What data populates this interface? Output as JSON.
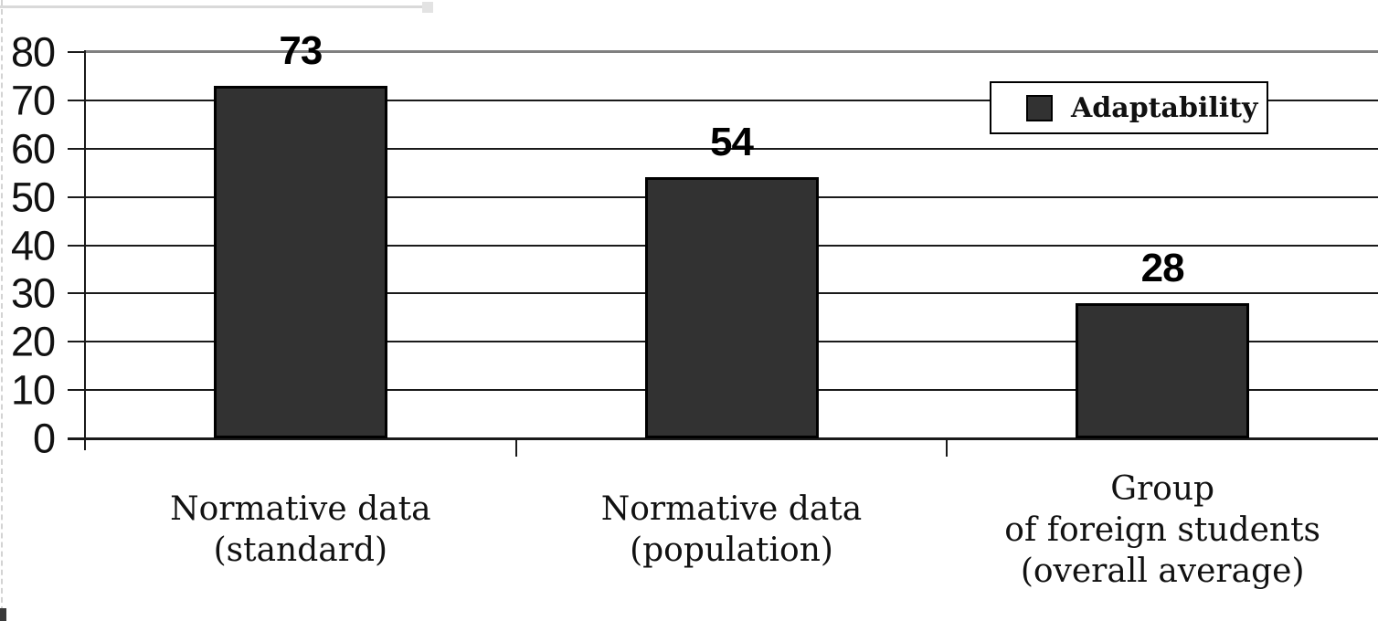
{
  "chart_data": {
    "type": "bar",
    "title": "",
    "xlabel": "",
    "ylabel": "",
    "categories": [
      {
        "lines": [
          "Normative data",
          "(standard)"
        ]
      },
      {
        "lines": [
          "Normative data",
          "(population)"
        ]
      },
      {
        "lines": [
          "Group",
          "of foreign students",
          "(overall average)"
        ]
      }
    ],
    "series": [
      {
        "name": "Adaptability",
        "values": [
          73,
          54,
          28
        ]
      }
    ],
    "ylim": [
      0,
      80
    ],
    "yticks": [
      0,
      10,
      20,
      30,
      40,
      50,
      60,
      70,
      80
    ],
    "grid": "horizontal gridlines every 10, top (80) line gray",
    "legend_position": "upper-right",
    "legend": {
      "label": "Adaptability",
      "swatch_color": "#323232"
    },
    "colors": {
      "bar_fill": "#323232",
      "bar_border": "#000000",
      "gridline": "#1a1a1a",
      "top_gridline": "#808080",
      "text": "#111111",
      "background": "#ffffff"
    }
  }
}
